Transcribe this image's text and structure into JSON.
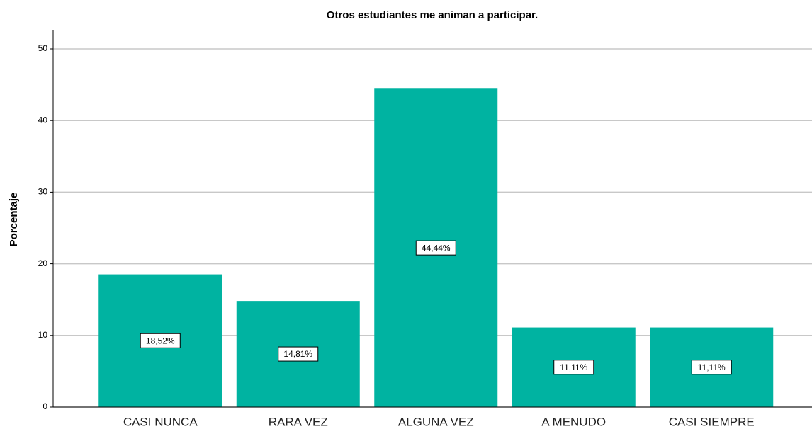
{
  "chart_data": {
    "type": "bar",
    "title": "Otros estudiantes me animan a participar.",
    "ylabel": "Porcentaje",
    "categories": [
      "CASI NUNCA",
      "RARA VEZ",
      "ALGUNA VEZ",
      "A MENUDO",
      "CASI SIEMPRE"
    ],
    "values": [
      18.52,
      14.81,
      44.44,
      11.11,
      11.11
    ],
    "value_labels": [
      "18,52%",
      "14,81%",
      "44,44%",
      "11,11%",
      "11,11%"
    ],
    "color": "#00b3a1",
    "ylim": [
      0,
      50
    ],
    "yticks": [
      0,
      10,
      20,
      30,
      40,
      50
    ],
    "grid": true
  }
}
